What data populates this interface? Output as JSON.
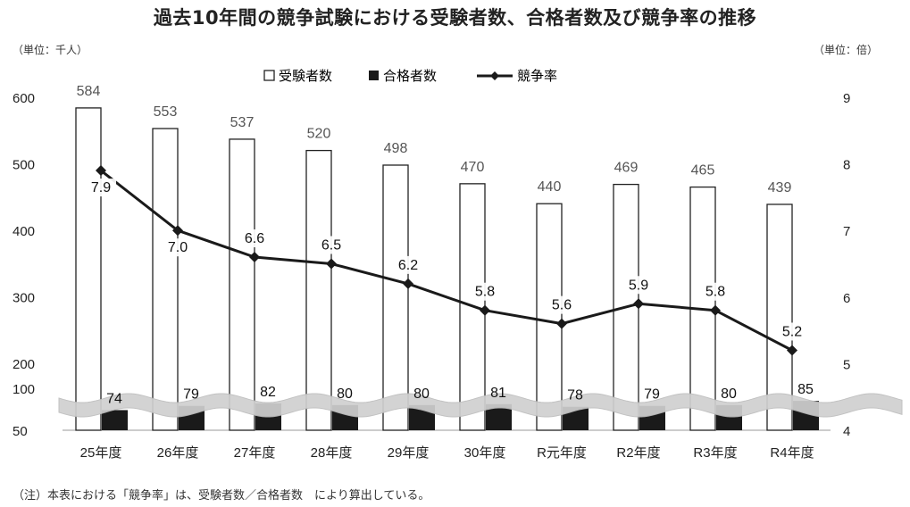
{
  "title": "過去10年間の競争試験における受験者数、合格者数及び競争率の推移",
  "left_unit": "（単位：千人）",
  "right_unit": "（単位：倍）",
  "note": "（注）本表における「競争率」は、受験者数／合格者数　により算出している。",
  "colors": {
    "applicants_fill": "#ffffff",
    "passers_fill": "#1a1a1a",
    "line": "#1a1a1a",
    "wave": "#d0d0d0"
  },
  "chart_data": {
    "type": "bar",
    "title": "過去10年間の競争試験における受験者数、合格者数及び競争率の推移",
    "categories": [
      "25年度",
      "26年度",
      "27年度",
      "28年度",
      "29年度",
      "30年度",
      "R元年度",
      "R2年度",
      "R3年度",
      "R4年度"
    ],
    "series": [
      {
        "name": "受験者数",
        "type": "bar",
        "axis": "left",
        "values": [
          584,
          553,
          537,
          520,
          498,
          470,
          440,
          469,
          465,
          439
        ]
      },
      {
        "name": "合格者数",
        "type": "bar",
        "axis": "left",
        "values": [
          74,
          79,
          82,
          80,
          80,
          81,
          78,
          79,
          80,
          85
        ]
      },
      {
        "name": "競争率",
        "type": "line",
        "axis": "right",
        "values": [
          7.9,
          7.0,
          6.6,
          6.5,
          6.2,
          5.8,
          5.6,
          5.9,
          5.8,
          5.2
        ]
      }
    ],
    "rate_labels": [
      "7.9",
      "7.0",
      "6.6",
      "6.5",
      "6.2",
      "5.8",
      "5.6",
      "5.9",
      "5.8",
      "5.2"
    ],
    "left_axis": {
      "ticks": [
        "600",
        "500",
        "400",
        "300",
        "200",
        "100",
        "50"
      ],
      "tick_values": [
        600,
        500,
        400,
        300,
        200,
        100,
        50
      ],
      "broken": true
    },
    "right_axis": {
      "ticks": [
        "9",
        "8",
        "7",
        "6",
        "5",
        "4"
      ],
      "tick_values": [
        9,
        8,
        7,
        6,
        5,
        4
      ]
    },
    "legend": [
      "受験者数",
      "合格者数",
      "競争率"
    ],
    "legend_position": "top",
    "grid": false
  }
}
